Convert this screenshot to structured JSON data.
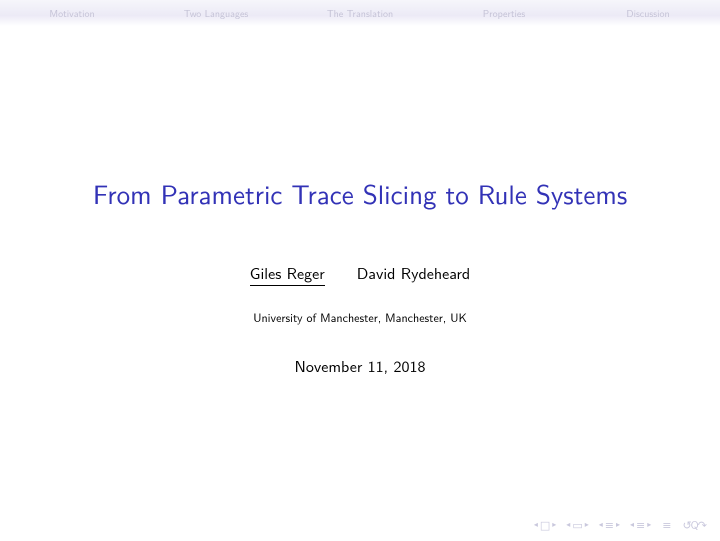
{
  "nav": {
    "items": [
      {
        "label": "Motivation"
      },
      {
        "label": "Two Languages"
      },
      {
        "label": "The Translation"
      },
      {
        "label": "Properties"
      },
      {
        "label": "Discussion"
      }
    ]
  },
  "title": "From Parametric Trace Slicing to Rule Systems",
  "authors": {
    "primary": "Giles Reger",
    "secondary": "David Rydeheard"
  },
  "affiliation": "University of Manchester, Manchester, UK",
  "date": "November 11, 2018",
  "controls": {
    "home": "□",
    "frame": "▭",
    "bullet_a": "≡",
    "bullet_b": "≡",
    "menu": "≡",
    "reload_a": "↺",
    "reload_b": "Q",
    "reload_c": "↷"
  },
  "colors": {
    "title_color": "#3232b6",
    "nav_text": "#c4c2d6",
    "controls_color": "#c9c8dd",
    "background": "#ffffff"
  }
}
